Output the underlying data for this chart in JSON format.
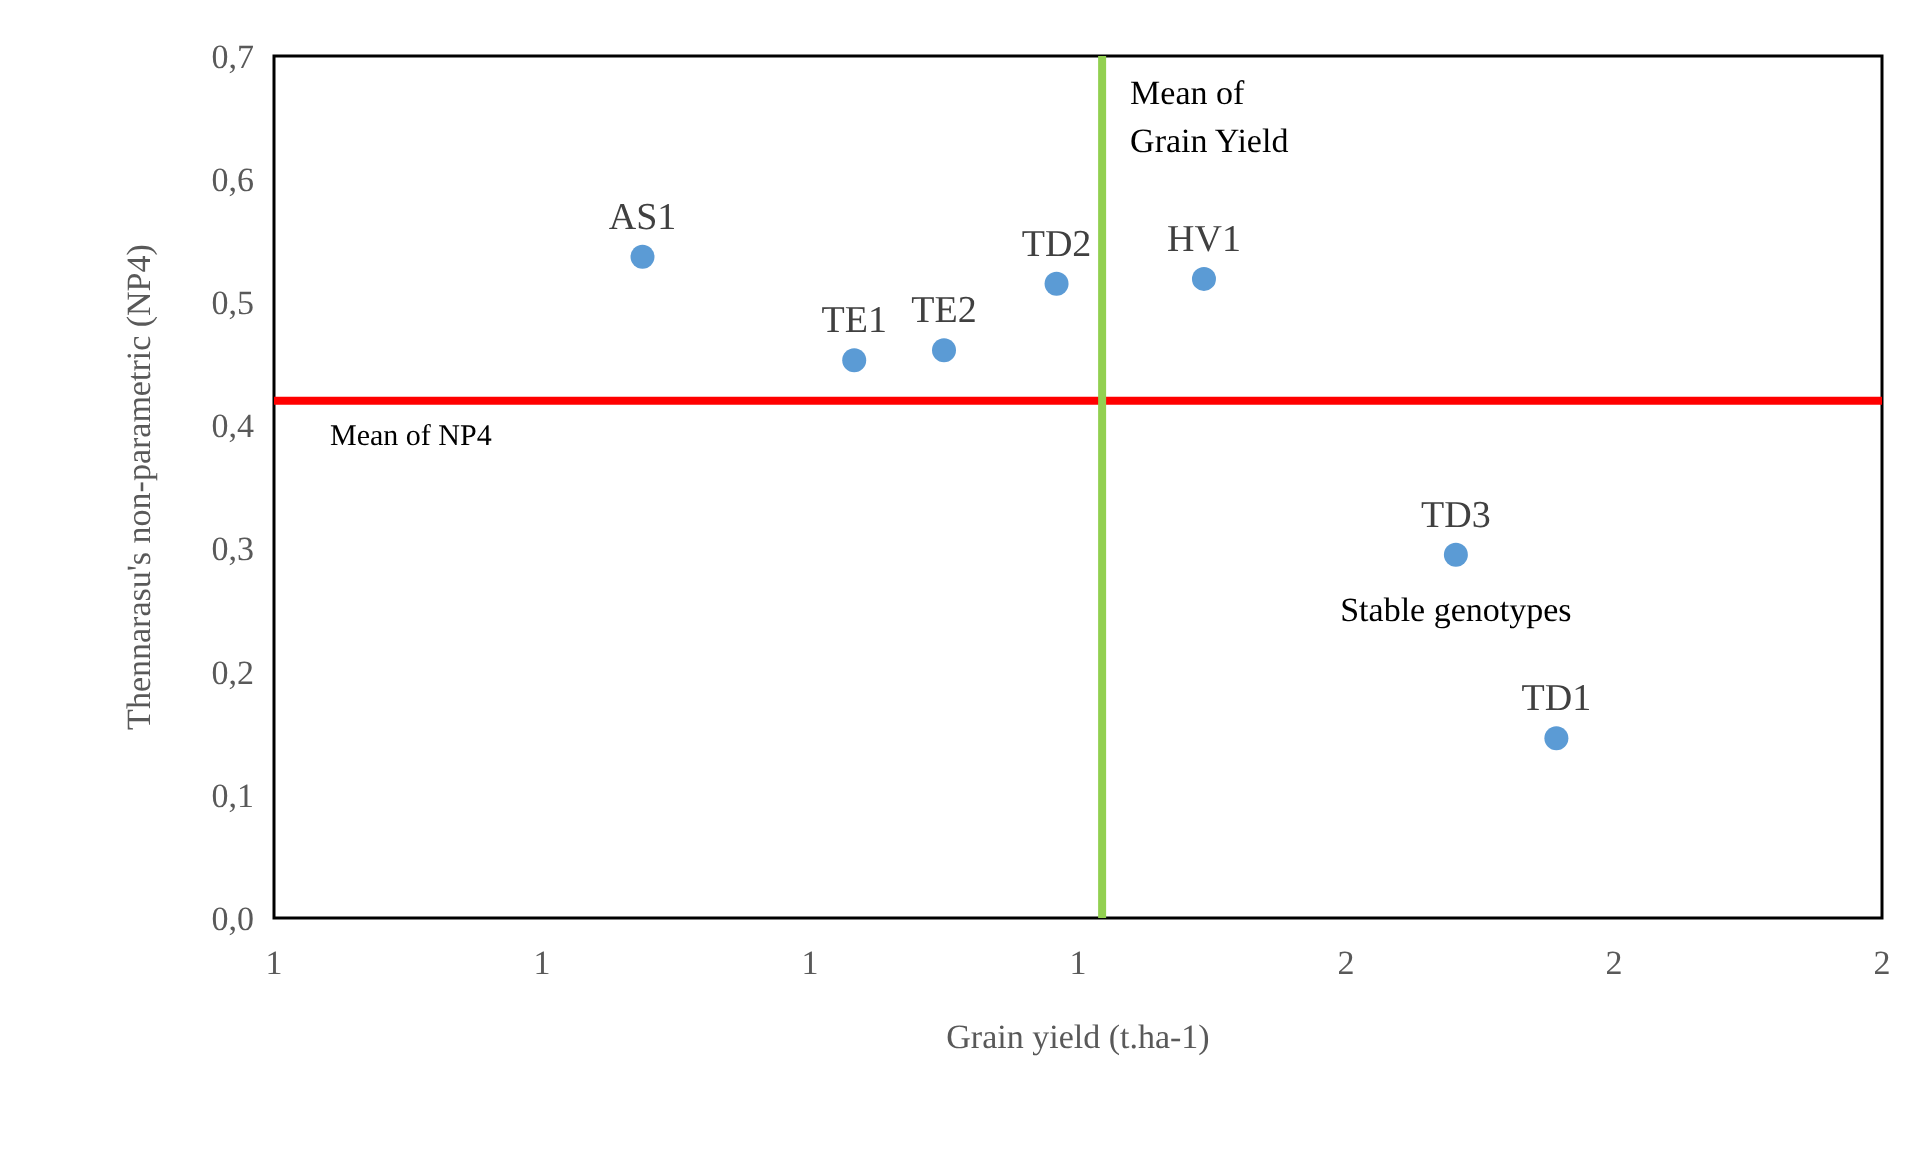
{
  "chart_data": {
    "type": "scatter",
    "xlabel": "Grain yield (t.ha-1)",
    "ylabel": "Thennarasu's non-parametric (NP4)",
    "x": [
      1.075,
      1.233,
      1.3,
      1.384,
      1.494,
      1.682,
      1.757
    ],
    "series": [
      {
        "color": "#5b9bd5",
        "values": [
          0.537,
          0.453,
          0.461,
          0.515,
          0.519,
          0.295,
          0.146
        ]
      }
    ],
    "marker": "circle",
    "xlim": [
      0.8,
      2.0
    ],
    "xticks": [
      {
        "value": 0.8,
        "label": "1"
      },
      {
        "value": 1.0,
        "label": "1"
      },
      {
        "value": 1.2,
        "label": "1"
      },
      {
        "value": 1.4,
        "label": "1"
      },
      {
        "value": 1.6,
        "label": "2"
      },
      {
        "value": 1.8,
        "label": "2"
      },
      {
        "value": 2.0,
        "label": "2"
      }
    ],
    "ylim": [
      0,
      0.7
    ],
    "yticks": [
      {
        "value": 0,
        "label": "0,0"
      },
      {
        "value": 0.1,
        "label": "0,1"
      },
      {
        "value": 0.2,
        "label": "0,2"
      },
      {
        "value": 0.3,
        "label": "0,3"
      },
      {
        "value": 0.4,
        "label": "0,4"
      },
      {
        "value": 0.5,
        "label": "0,5"
      },
      {
        "value": 0.6,
        "label": "0,6"
      },
      {
        "value": 0.7,
        "label": "0,7"
      }
    ],
    "grid": false,
    "ref_lines": [
      {
        "axis": "y",
        "value": 0.42,
        "label": "Mean of NP4",
        "color": "#ff0000"
      },
      {
        "axis": "x",
        "value": 1.418,
        "label": "Mean of\nGrain Yield",
        "color": "#92d050"
      }
    ],
    "annotations": [
      {
        "text": "AS1",
        "x": 1.075,
        "y": 0.537
      },
      {
        "text": "TE1",
        "x": 1.233,
        "y": 0.453
      },
      {
        "text": "TE2",
        "x": 1.3,
        "y": 0.461
      },
      {
        "text": "TD2",
        "x": 1.384,
        "y": 0.515
      },
      {
        "text": "HV1",
        "x": 1.494,
        "y": 0.519
      },
      {
        "text": "TD3",
        "x": 1.682,
        "y": 0.295
      },
      {
        "text": "TD1",
        "x": 1.757,
        "y": 0.146
      },
      "Stable genotypes"
    ]
  }
}
